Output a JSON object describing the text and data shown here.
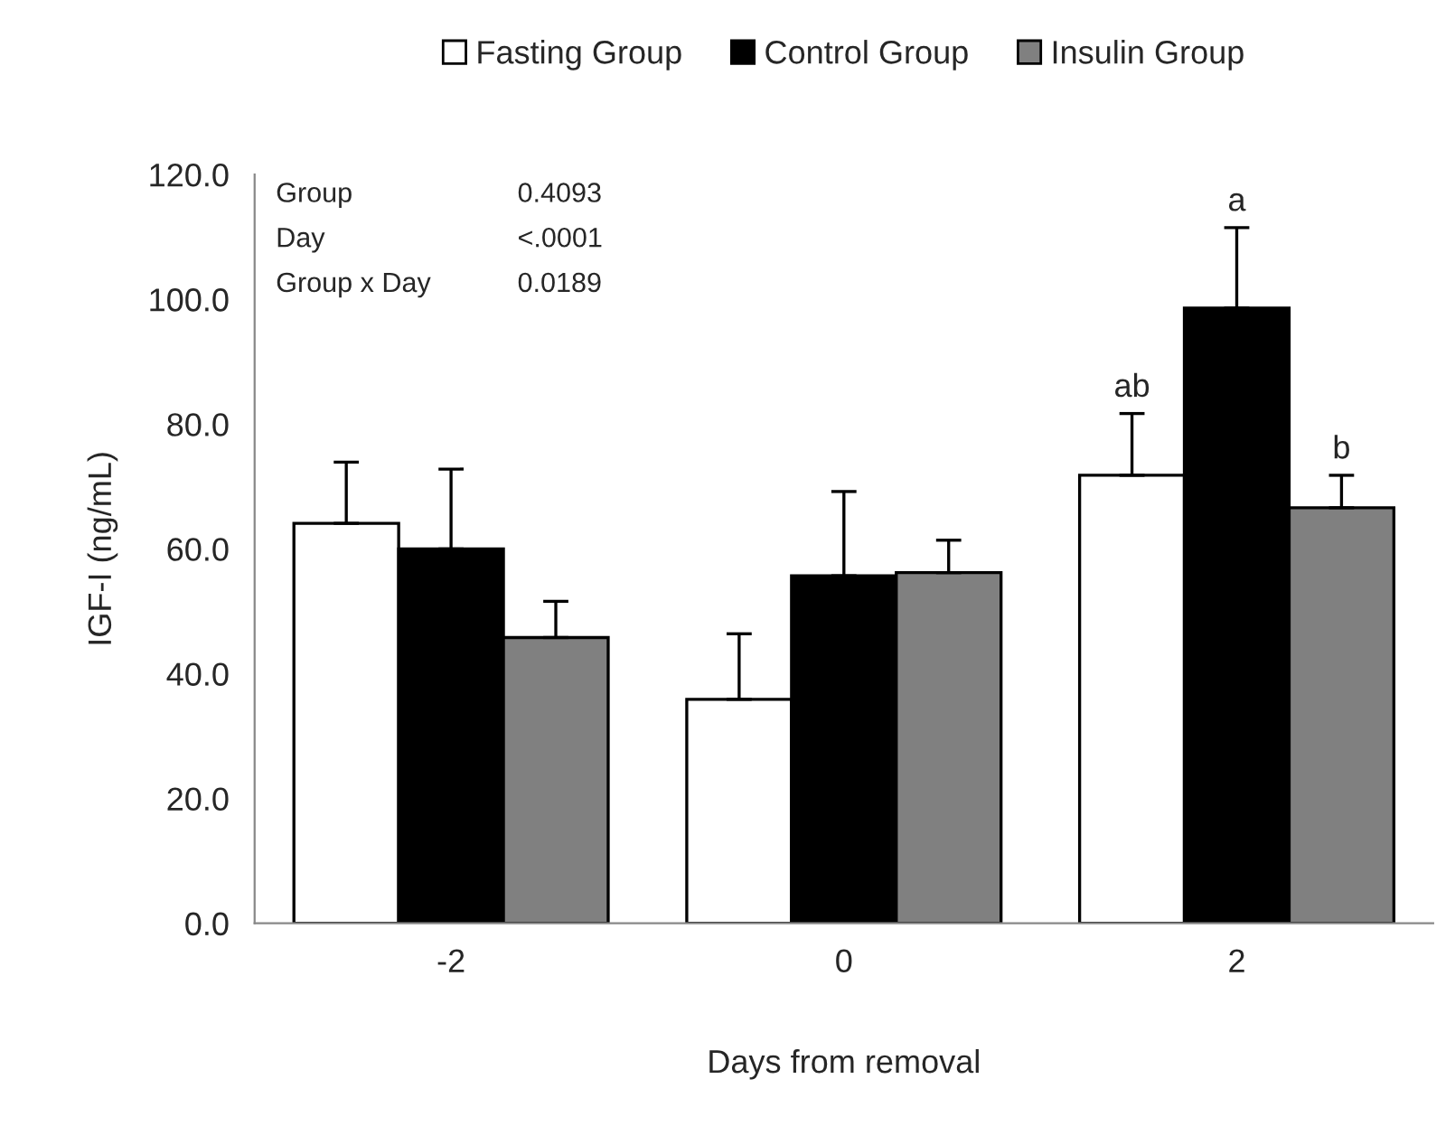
{
  "chart_data": {
    "type": "bar",
    "xlabel": "Days from removal",
    "ylabel": "IGF-I (ng/mL)",
    "categories": [
      "-2",
      "0",
      "2"
    ],
    "series": [
      {
        "name": "Fasting Group",
        "color": "#ffffff",
        "values": [
          64.1,
          35.9,
          71.8
        ],
        "errors": [
          [
            64.1,
            73.9
          ],
          [
            35.9,
            46.4
          ],
          [
            71.8,
            81.7
          ]
        ]
      },
      {
        "name": "Control Group",
        "color": "#000000",
        "values": [
          60.0,
          55.7,
          98.6
        ],
        "errors": [
          [
            60.0,
            72.8
          ],
          [
            55.7,
            69.2
          ],
          [
            98.6,
            111.5
          ]
        ]
      },
      {
        "name": "Insulin Group",
        "color": "#808080",
        "values": [
          45.8,
          56.2,
          66.6
        ],
        "errors": [
          [
            45.8,
            51.6
          ],
          [
            56.2,
            61.4
          ],
          [
            66.6,
            71.8
          ]
        ]
      }
    ],
    "ylim": [
      0,
      120
    ],
    "yticks": [
      {
        "value": 0,
        "label": "0.0"
      },
      {
        "value": 20,
        "label": "20.0"
      },
      {
        "value": 40,
        "label": "40.0"
      },
      {
        "value": 60,
        "label": "60.0"
      },
      {
        "value": 80,
        "label": "80.0"
      },
      {
        "value": 100,
        "label": "100.0"
      },
      {
        "value": 120,
        "label": "120.0"
      }
    ],
    "annotations": [
      "Group",
      "0.4093",
      "Day",
      "<.0001",
      "Group x Day",
      "0.0189",
      "ab",
      "b",
      {
        "text": "a",
        "x": "2",
        "y": 111.5
      }
    ],
    "grid": false,
    "legend": "top"
  }
}
